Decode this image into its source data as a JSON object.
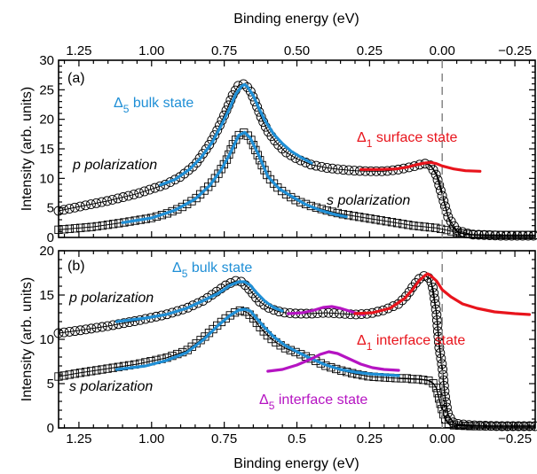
{
  "chart_data": [
    {
      "panel": "(a)",
      "type": "line",
      "xlabel": "Binding energy (eV)",
      "ylabel": "Intensity (arb. units)",
      "xlim": [
        1.32,
        -0.32
      ],
      "ylim": [
        0,
        30
      ],
      "x_reversed": true,
      "xaxis_position": "top",
      "xticks": [
        "1.25",
        "1.00",
        "0.75",
        "0.50",
        "0.25",
        "0.00",
        "−0.25"
      ],
      "xtick_values": [
        1.25,
        1.0,
        0.75,
        0.5,
        0.25,
        0.0,
        -0.25
      ],
      "yticks": [
        "0",
        "5",
        "10",
        "15",
        "20",
        "25",
        "30"
      ],
      "ytick_values": [
        0,
        5,
        10,
        15,
        20,
        25,
        30
      ],
      "fermi_level": 0.0,
      "series": [
        {
          "key": "p-data",
          "name": "p polarization",
          "marker": "circle",
          "x": [
            1.32,
            1.25,
            1.15,
            1.05,
            0.95,
            0.9,
            0.85,
            0.8,
            0.77,
            0.74,
            0.72,
            0.7,
            0.68,
            0.66,
            0.64,
            0.62,
            0.6,
            0.57,
            0.54,
            0.5,
            0.45,
            0.4,
            0.35,
            0.3,
            0.25,
            0.2,
            0.15,
            0.1,
            0.08,
            0.06,
            0.04,
            0.02,
            0.0,
            -0.02,
            -0.05,
            -0.1,
            -0.2,
            -0.32
          ],
          "y": [
            4.5,
            5.2,
            6.2,
            7.4,
            9.0,
            10.3,
            12.3,
            15.8,
            18.5,
            21.8,
            24.2,
            25.8,
            26.0,
            24.8,
            22.5,
            20.0,
            18.0,
            16.0,
            14.5,
            13.3,
            12.3,
            11.8,
            11.5,
            11.3,
            11.2,
            11.2,
            11.5,
            12.0,
            12.3,
            12.5,
            12.2,
            10.5,
            7.0,
            3.5,
            1.2,
            0.5,
            0.3,
            0.3
          ]
        },
        {
          "key": "s-data",
          "name": "s polarization",
          "marker": "square",
          "x": [
            1.32,
            1.2,
            1.1,
            1.0,
            0.95,
            0.9,
            0.85,
            0.8,
            0.77,
            0.74,
            0.72,
            0.7,
            0.68,
            0.66,
            0.64,
            0.62,
            0.6,
            0.57,
            0.54,
            0.5,
            0.45,
            0.4,
            0.35,
            0.3,
            0.25,
            0.2,
            0.15,
            0.1,
            0.08,
            0.06,
            0.04,
            0.02,
            0.0,
            -0.02,
            -0.05,
            -0.1,
            -0.2,
            -0.32
          ],
          "y": [
            1.3,
            1.8,
            2.5,
            3.3,
            4.0,
            5.0,
            6.5,
            8.8,
            10.8,
            13.3,
            15.8,
            17.3,
            17.8,
            16.8,
            14.5,
            12.2,
            10.3,
            8.6,
            7.4,
            6.2,
            5.3,
            4.6,
            4.0,
            3.6,
            3.2,
            2.8,
            2.4,
            2.0,
            1.9,
            1.8,
            1.7,
            1.6,
            1.4,
            1.2,
            0.8,
            0.5,
            0.4,
            0.4
          ]
        },
        {
          "key": "p-bulk-fit",
          "color": "#1f8fd6",
          "x": [
            0.97,
            0.92,
            0.87,
            0.83,
            0.79,
            0.76,
            0.73,
            0.71,
            0.69,
            0.68,
            0.67,
            0.65,
            0.63,
            0.61,
            0.58,
            0.55,
            0.52,
            0.48,
            0.45
          ],
          "y": [
            8.9,
            9.8,
            11.5,
            13.5,
            16.2,
            19.0,
            22.0,
            24.3,
            25.6,
            25.9,
            25.5,
            24.0,
            21.8,
            19.8,
            17.5,
            15.9,
            14.6,
            13.4,
            12.6
          ]
        },
        {
          "key": "p-surface-fit",
          "color": "#e8141c",
          "x": [
            0.28,
            0.22,
            0.16,
            0.12,
            0.09,
            0.06,
            0.04,
            0.02,
            0.0,
            -0.04,
            -0.08,
            -0.13
          ],
          "y": [
            11.5,
            11.5,
            11.6,
            11.9,
            12.3,
            12.6,
            12.7,
            12.5,
            12.1,
            11.6,
            11.3,
            11.2
          ]
        },
        {
          "key": "s-bulk-fit",
          "color": "#1f8fd6",
          "x": [
            1.1,
            1.0,
            0.92,
            0.85,
            0.8,
            0.76,
            0.73,
            0.7,
            0.68,
            0.66,
            0.63,
            0.6,
            0.56,
            0.52,
            0.47,
            0.42,
            0.37,
            0.33
          ],
          "y": [
            2.5,
            3.3,
            4.6,
            6.5,
            8.8,
            11.5,
            14.2,
            17.3,
            17.8,
            16.8,
            13.8,
            10.3,
            8.2,
            7.0,
            5.6,
            4.6,
            3.9,
            3.5
          ]
        }
      ],
      "fermi_edge_curve": {
        "key": "p-edge-fit",
        "x": [
          0.1,
          0.06,
          0.04,
          0.02,
          0.01,
          0.0,
          -0.01,
          -0.02,
          -0.03,
          -0.05,
          -0.08,
          -0.15,
          -0.32
        ],
        "y": [
          12.0,
          12.5,
          12.2,
          10.8,
          9.5,
          7.5,
          5.5,
          3.5,
          2.2,
          1.0,
          0.5,
          0.3,
          0.3
        ]
      },
      "annotations": [
        {
          "key": "bulk",
          "symbol": "Δ",
          "sub": "5",
          "text": " bulk state",
          "color": "#1f8fd6"
        },
        {
          "key": "surface",
          "symbol": "Δ",
          "sub": "1",
          "text": " surface state",
          "color": "#e8141c"
        },
        {
          "key": "p-pol",
          "text": "p polarization",
          "color": "#000000"
        },
        {
          "key": "s-pol",
          "text": "s polarization",
          "color": "#000000"
        }
      ]
    },
    {
      "panel": "(b)",
      "type": "line",
      "xlabel": "Binding energy (eV)",
      "ylabel": "Intensity (arb. units)",
      "xlim": [
        1.32,
        -0.32
      ],
      "ylim": [
        0,
        20
      ],
      "x_reversed": true,
      "xaxis_position": "bottom",
      "xticks": [
        "1.25",
        "1.00",
        "0.75",
        "0.5",
        "0.25",
        "0.00",
        "−0.25"
      ],
      "xtick_values": [
        1.25,
        1.0,
        0.75,
        0.5,
        0.25,
        0.0,
        -0.25
      ],
      "yticks": [
        "0",
        "5",
        "10",
        "15",
        "20"
      ],
      "ytick_values": [
        0,
        5,
        10,
        15,
        20
      ],
      "fermi_level": 0.0,
      "series": [
        {
          "key": "p-data",
          "name": "p polarization",
          "marker": "circle",
          "x": [
            1.32,
            1.25,
            1.15,
            1.05,
            0.95,
            0.88,
            0.82,
            0.78,
            0.74,
            0.71,
            0.69,
            0.67,
            0.65,
            0.63,
            0.6,
            0.57,
            0.54,
            0.5,
            0.45,
            0.4,
            0.35,
            0.3,
            0.25,
            0.2,
            0.15,
            0.12,
            0.1,
            0.08,
            0.06,
            0.04,
            0.03,
            0.02,
            0.01,
            0.0,
            -0.01,
            -0.02,
            -0.04,
            -0.1,
            -0.2,
            -0.32
          ],
          "y": [
            10.7,
            11.0,
            11.5,
            12.1,
            12.8,
            13.5,
            14.4,
            15.3,
            16.2,
            16.6,
            16.5,
            15.9,
            15.1,
            14.3,
            13.6,
            13.2,
            13.0,
            12.9,
            12.9,
            13.0,
            12.9,
            12.8,
            12.9,
            13.3,
            14.0,
            15.0,
            16.0,
            16.8,
            17.2,
            16.8,
            15.5,
            13.0,
            9.0,
            7.0,
            3.5,
            1.5,
            0.5,
            0.3,
            0.2,
            0.2
          ]
        },
        {
          "key": "s-data",
          "name": "s polarization",
          "marker": "square",
          "x": [
            1.32,
            1.25,
            1.15,
            1.05,
            0.95,
            0.88,
            0.82,
            0.78,
            0.74,
            0.71,
            0.69,
            0.67,
            0.65,
            0.63,
            0.6,
            0.57,
            0.54,
            0.5,
            0.45,
            0.4,
            0.35,
            0.3,
            0.25,
            0.2,
            0.15,
            0.12,
            0.1,
            0.08,
            0.06,
            0.04,
            0.03,
            0.02,
            0.01,
            0.0,
            -0.01,
            -0.02,
            -0.04,
            -0.1,
            -0.2,
            -0.32
          ],
          "y": [
            5.8,
            6.2,
            6.7,
            7.2,
            7.9,
            8.7,
            10.2,
            11.4,
            12.5,
            13.1,
            13.3,
            13.0,
            12.4,
            11.5,
            10.4,
            9.6,
            9.0,
            8.5,
            7.8,
            7.0,
            6.5,
            6.1,
            5.8,
            5.7,
            5.6,
            5.6,
            5.5,
            5.5,
            5.4,
            5.3,
            5.0,
            4.5,
            3.2,
            2.0,
            1.0,
            0.5,
            0.3,
            0.2,
            0.2,
            0.2
          ]
        },
        {
          "key": "p-bulk-fit",
          "color": "#1f8fd6",
          "x": [
            1.12,
            1.02,
            0.95,
            0.88,
            0.82,
            0.77,
            0.73,
            0.7,
            0.68,
            0.66,
            0.64,
            0.61,
            0.58,
            0.55
          ],
          "y": [
            12.0,
            12.4,
            12.8,
            13.5,
            14.4,
            15.2,
            16.1,
            16.5,
            16.5,
            16.1,
            15.3,
            14.3,
            13.6,
            13.2
          ]
        },
        {
          "key": "p-interface-d5-fit",
          "color": "#b514c2",
          "x": [
            0.53,
            0.48,
            0.44,
            0.41,
            0.38,
            0.35,
            0.32,
            0.29,
            0.27
          ],
          "y": [
            12.9,
            13.0,
            13.3,
            13.6,
            13.7,
            13.5,
            13.2,
            12.9,
            12.8
          ]
        },
        {
          "key": "p-interface-d1-fit",
          "color": "#e8141c",
          "x": [
            0.3,
            0.24,
            0.18,
            0.13,
            0.1,
            0.08,
            0.06,
            0.05,
            0.04,
            0.02,
            0.0,
            -0.03,
            -0.07,
            -0.12,
            -0.18,
            -0.25,
            -0.3
          ],
          "y": [
            12.9,
            13.0,
            13.5,
            14.6,
            15.7,
            16.6,
            17.2,
            17.4,
            17.2,
            16.6,
            15.6,
            14.8,
            14.0,
            13.5,
            13.1,
            12.9,
            12.8
          ]
        },
        {
          "key": "s-bulk-fit",
          "color": "#1f8fd6",
          "x": [
            1.12,
            1.02,
            0.95,
            0.88,
            0.82,
            0.77,
            0.73,
            0.7,
            0.68,
            0.66,
            0.64,
            0.61,
            0.58,
            0.54,
            0.5,
            0.45,
            0.4,
            0.35,
            0.3,
            0.25,
            0.2,
            0.15
          ],
          "y": [
            6.6,
            7.0,
            7.6,
            8.5,
            10.0,
            11.6,
            12.7,
            13.3,
            13.4,
            13.2,
            12.4,
            11.3,
            10.3,
            9.3,
            8.6,
            7.8,
            7.1,
            6.6,
            6.3,
            6.1,
            6.0,
            5.9
          ]
        },
        {
          "key": "s-interface-d5-fit",
          "color": "#b514c2",
          "x": [
            0.6,
            0.55,
            0.5,
            0.45,
            0.42,
            0.39,
            0.36,
            0.32,
            0.28,
            0.24,
            0.2,
            0.15
          ],
          "y": [
            6.4,
            6.6,
            7.1,
            7.8,
            8.3,
            8.6,
            8.4,
            7.8,
            7.2,
            6.8,
            6.6,
            6.5
          ]
        }
      ],
      "fermi_edge_curves": [
        {
          "key": "p-edge-fit",
          "x": [
            0.06,
            0.04,
            0.02,
            0.01,
            0.0,
            -0.01,
            -0.02,
            -0.04,
            -0.08,
            -0.15,
            -0.32
          ],
          "y": [
            17.2,
            16.8,
            13.0,
            9.5,
            6.5,
            3.5,
            1.5,
            0.5,
            0.3,
            0.2,
            0.2
          ]
        },
        {
          "key": "s-edge-fit",
          "x": [
            0.15,
            0.08,
            0.05,
            0.03,
            0.02,
            0.01,
            0.0,
            -0.01,
            -0.02,
            -0.04,
            -0.08,
            -0.15,
            -0.32
          ],
          "y": [
            5.6,
            5.5,
            5.4,
            5.0,
            4.5,
            3.2,
            2.0,
            1.0,
            0.5,
            0.3,
            0.2,
            0.2,
            0.2
          ]
        }
      ],
      "annotations": [
        {
          "key": "bulk",
          "symbol": "Δ",
          "sub": "5",
          "text": " bulk state",
          "color": "#1f8fd6"
        },
        {
          "key": "d1-interface",
          "symbol": "Δ",
          "sub": "1",
          "text": " interface state",
          "color": "#e8141c"
        },
        {
          "key": "d5-interface",
          "symbol": "Δ",
          "sub": "5",
          "text": " interface state",
          "color": "#b514c2"
        },
        {
          "key": "p-pol",
          "text": "p polarization",
          "color": "#000000"
        },
        {
          "key": "s-pol",
          "text": "s polarization",
          "color": "#000000"
        }
      ]
    }
  ],
  "colors": {
    "data": "#000000",
    "bulk": "#1f8fd6",
    "surface": "#e8141c",
    "interface_d5": "#b514c2",
    "fermi_line": "#8c8c8c"
  }
}
